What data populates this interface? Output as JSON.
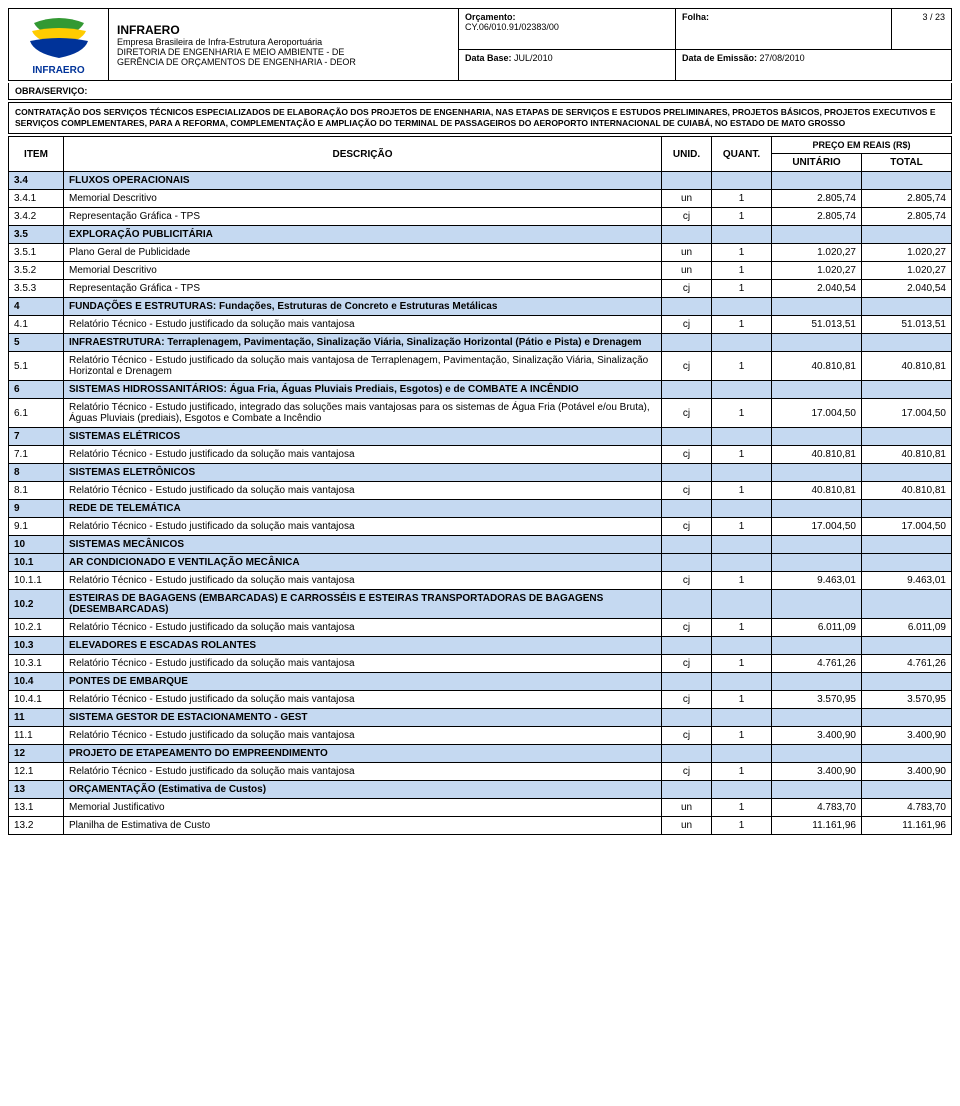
{
  "header": {
    "logo_text": "INFRAERO",
    "company_name": "INFRAERO",
    "company_sub": "Empresa Brasileira de Infra-Estrutura Aeroportuária",
    "dept1": "DIRETORIA DE ENGENHARIA E MEIO AMBIENTE - DE",
    "dept2": "GERÊNCIA DE ORÇAMENTOS DE ENGENHARIA - DEOR",
    "orcamento_label": "Orçamento:",
    "orcamento_value": "CY.06/010.91/02383/00",
    "folha_label": "Folha:",
    "folha_value": "3 / 23",
    "database_label": "Data Base:",
    "database_value": "JUL/2010",
    "emissao_label": "Data de Emissão:",
    "emissao_value": "27/08/2010",
    "obra_label": "OBRA/SERVIÇO:",
    "description": "CONTRATAÇÃO DOS SERVIÇOS TÉCNICOS ESPECIALIZADOS DE ELABORAÇÃO DOS PROJETOS DE ENGENHARIA, NAS ETAPAS DE SERVIÇOS E ESTUDOS PRELIMINARES, PROJETOS BÁSICOS, PROJETOS EXECUTIVOS E SERVIÇOS COMPLEMENTARES, PARA A REFORMA, COMPLEMENTAÇÃO E AMPLIAÇÃO DO TERMINAL DE PASSAGEIROS DO AEROPORTO INTERNACIONAL DE CUIABÁ, NO ESTADO DE MATO GROSSO"
  },
  "table": {
    "headers": {
      "item": "ITEM",
      "desc": "DESCRIÇÃO",
      "unid": "UNID.",
      "quant": "QUANT.",
      "preco": "PREÇO EM REAIS (R$)",
      "unitario": "UNITÁRIO",
      "total": "TOTAL"
    },
    "rows": [
      {
        "type": "section",
        "item": "3.4",
        "desc": "FLUXOS OPERACIONAIS"
      },
      {
        "type": "data",
        "item": "3.4.1",
        "desc": "Memorial Descritivo",
        "unid": "un",
        "quant": "1",
        "unit": "2.805,74",
        "total": "2.805,74"
      },
      {
        "type": "data",
        "item": "3.4.2",
        "desc": "Representação Gráfica - TPS",
        "unid": "cj",
        "quant": "1",
        "unit": "2.805,74",
        "total": "2.805,74"
      },
      {
        "type": "section",
        "item": "3.5",
        "desc": "EXPLORAÇÃO PUBLICITÁRIA"
      },
      {
        "type": "data",
        "item": "3.5.1",
        "desc": "Plano Geral de Publicidade",
        "unid": "un",
        "quant": "1",
        "unit": "1.020,27",
        "total": "1.020,27"
      },
      {
        "type": "data",
        "item": "3.5.2",
        "desc": "Memorial Descritivo",
        "unid": "un",
        "quant": "1",
        "unit": "1.020,27",
        "total": "1.020,27"
      },
      {
        "type": "data",
        "item": "3.5.3",
        "desc": "Representação Gráfica - TPS",
        "unid": "cj",
        "quant": "1",
        "unit": "2.040,54",
        "total": "2.040,54"
      },
      {
        "type": "section",
        "item": "4",
        "desc": "FUNDAÇÕES E ESTRUTURAS: Fundações, Estruturas de Concreto e Estruturas Metálicas"
      },
      {
        "type": "data",
        "item": "4.1",
        "desc": "Relatório Técnico - Estudo justificado da solução mais vantajosa",
        "unid": "cj",
        "quant": "1",
        "unit": "51.013,51",
        "total": "51.013,51"
      },
      {
        "type": "section",
        "item": "5",
        "desc": "INFRAESTRUTURA: Terraplenagem, Pavimentação, Sinalização Viária, Sinalização Horizontal (Pátio e Pista) e Drenagem"
      },
      {
        "type": "data",
        "item": "5.1",
        "desc": "Relatório Técnico - Estudo justificado da solução mais vantajosa de Terraplenagem, Pavimentação, Sinalização Viária, Sinalização Horizontal e Drenagem",
        "unid": "cj",
        "quant": "1",
        "unit": "40.810,81",
        "total": "40.810,81"
      },
      {
        "type": "section",
        "item": "6",
        "desc": "SISTEMAS HIDROSSANITÁRIOS: Água Fria, Águas Pluviais Prediais, Esgotos) e de COMBATE A INCÊNDIO"
      },
      {
        "type": "data",
        "item": "6.1",
        "desc": "Relatório Técnico - Estudo justificado, integrado das soluções mais vantajosas para os sistemas de Água Fria (Potável e/ou Bruta), Águas Pluviais (prediais), Esgotos e Combate a Incêndio",
        "unid": "cj",
        "quant": "1",
        "unit": "17.004,50",
        "total": "17.004,50"
      },
      {
        "type": "section",
        "item": "7",
        "desc": "SISTEMAS ELÉTRICOS"
      },
      {
        "type": "data",
        "item": "7.1",
        "desc": "Relatório Técnico - Estudo justificado da solução mais vantajosa",
        "unid": "cj",
        "quant": "1",
        "unit": "40.810,81",
        "total": "40.810,81"
      },
      {
        "type": "section",
        "item": "8",
        "desc": "SISTEMAS ELETRÔNICOS"
      },
      {
        "type": "data",
        "item": "8.1",
        "desc": "Relatório Técnico - Estudo justificado da solução mais vantajosa",
        "unid": "cj",
        "quant": "1",
        "unit": "40.810,81",
        "total": "40.810,81"
      },
      {
        "type": "section",
        "item": "9",
        "desc": "REDE DE TELEMÁTICA"
      },
      {
        "type": "data",
        "item": "9.1",
        "desc": "Relatório Técnico - Estudo justificado da solução mais vantajosa",
        "unid": "cj",
        "quant": "1",
        "unit": "17.004,50",
        "total": "17.004,50"
      },
      {
        "type": "section",
        "item": "10",
        "desc": "SISTEMAS MECÂNICOS"
      },
      {
        "type": "section",
        "item": "10.1",
        "desc": "AR CONDICIONADO E VENTILAÇÃO MECÂNICA"
      },
      {
        "type": "data",
        "item": "10.1.1",
        "desc": "Relatório Técnico - Estudo justificado da solução mais vantajosa",
        "unid": "cj",
        "quant": "1",
        "unit": "9.463,01",
        "total": "9.463,01"
      },
      {
        "type": "section",
        "item": "10.2",
        "desc": "ESTEIRAS DE BAGAGENS (EMBARCADAS) E CARROSSÉIS E ESTEIRAS TRANSPORTADORAS DE BAGAGENS (DESEMBARCADAS)"
      },
      {
        "type": "data",
        "item": "10.2.1",
        "desc": "Relatório Técnico - Estudo justificado da solução mais vantajosa",
        "unid": "cj",
        "quant": "1",
        "unit": "6.011,09",
        "total": "6.011,09"
      },
      {
        "type": "section",
        "item": "10.3",
        "desc": "ELEVADORES E ESCADAS ROLANTES"
      },
      {
        "type": "data",
        "item": "10.3.1",
        "desc": "Relatório Técnico - Estudo justificado da solução mais vantajosa",
        "unid": "cj",
        "quant": "1",
        "unit": "4.761,26",
        "total": "4.761,26"
      },
      {
        "type": "section",
        "item": "10.4",
        "desc": "PONTES DE EMBARQUE"
      },
      {
        "type": "data",
        "item": "10.4.1",
        "desc": "Relatório Técnico - Estudo justificado da solução mais vantajosa",
        "unid": "cj",
        "quant": "1",
        "unit": "3.570,95",
        "total": "3.570,95"
      },
      {
        "type": "section",
        "item": "11",
        "desc": "SISTEMA GESTOR DE ESTACIONAMENTO - GEST"
      },
      {
        "type": "data",
        "item": "11.1",
        "desc": "Relatório Técnico - Estudo justificado da solução mais vantajosa",
        "unid": "cj",
        "quant": "1",
        "unit": "3.400,90",
        "total": "3.400,90"
      },
      {
        "type": "section",
        "item": "12",
        "desc": "PROJETO DE ETAPEAMENTO DO EMPREENDIMENTO"
      },
      {
        "type": "data",
        "item": "12.1",
        "desc": "Relatório Técnico - Estudo justificado da solução mais vantajosa",
        "unid": "cj",
        "quant": "1",
        "unit": "3.400,90",
        "total": "3.400,90"
      },
      {
        "type": "section",
        "item": "13",
        "desc": "ORÇAMENTAÇÃO (Estimativa de Custos)"
      },
      {
        "type": "data",
        "item": "13.1",
        "desc": "Memorial Justificativo",
        "unid": "un",
        "quant": "1",
        "unit": "4.783,70",
        "total": "4.783,70"
      },
      {
        "type": "data",
        "item": "13.2",
        "desc": "Planilha de Estimativa de Custo",
        "unid": "un",
        "quant": "1",
        "unit": "11.161,96",
        "total": "11.161,96"
      }
    ]
  },
  "colors": {
    "section_bg": "#c5d9f1",
    "logo_blue": "#003399",
    "logo_green": "#339933",
    "logo_yellow": "#ffcc00"
  }
}
